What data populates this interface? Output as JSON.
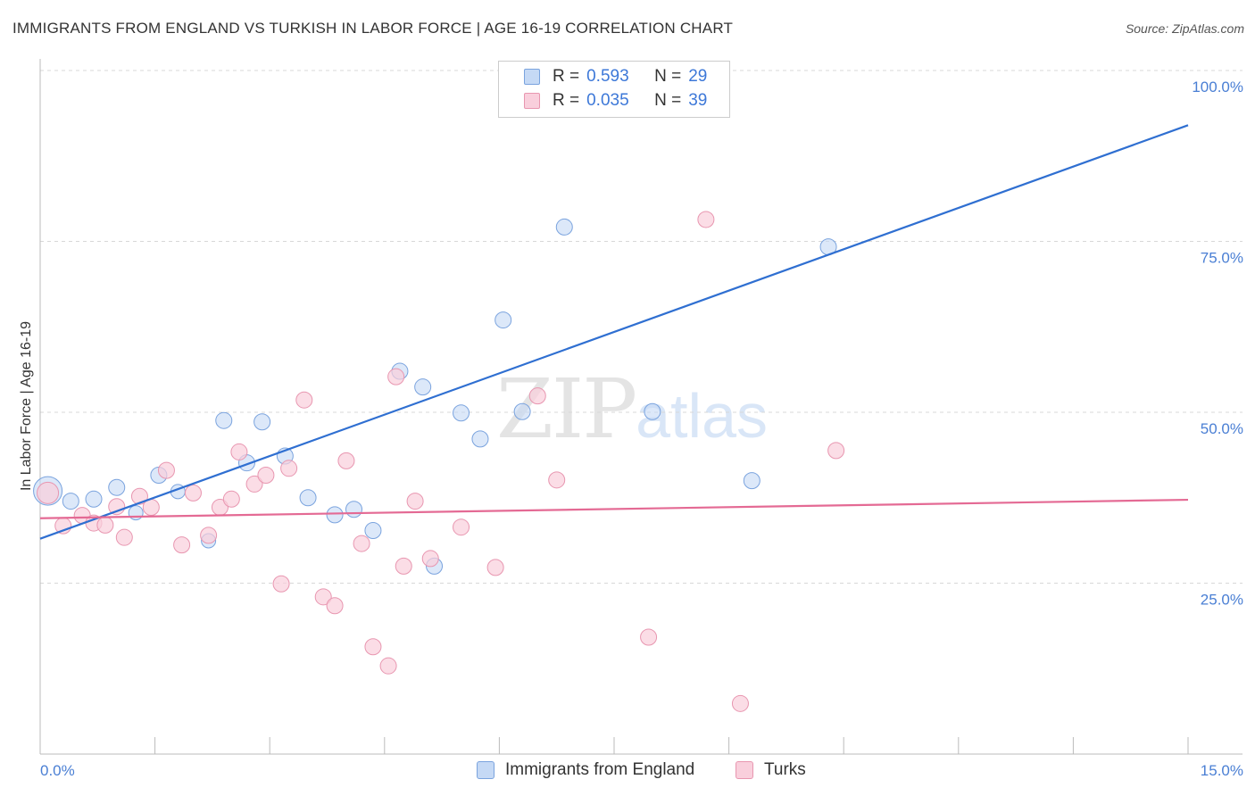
{
  "title": "IMMIGRANTS FROM ENGLAND VS TURKISH IN LABOR FORCE | AGE 16-19 CORRELATION CHART",
  "source": "Source: ZipAtlas.com",
  "watermark": {
    "zip": "ZIP",
    "atlas": "atlas"
  },
  "legend": {
    "rows": [
      {
        "r_label": "R =",
        "r_value": "0.593",
        "n_label": "N =",
        "n_value": "29"
      },
      {
        "r_label": "R =",
        "r_value": "0.035",
        "n_label": "N =",
        "n_value": "39"
      }
    ]
  },
  "bottom_legend": {
    "series1": "Immigrants from England",
    "series2": "Turks"
  },
  "colors": {
    "england_fill": "#c5d9f5",
    "england_stroke": "#7aa3de",
    "england_line": "#2f6fd1",
    "turks_fill": "#f9cfdc",
    "turks_stroke": "#e896b0",
    "turks_line": "#e46a94",
    "tick": "#4a7fd4",
    "grid": "#d8d8d8"
  },
  "chart_data": {
    "type": "scatter",
    "title": "IMMIGRANTS FROM ENGLAND VS TURKISH IN LABOR FORCE | AGE 16-19 CORRELATION CHART",
    "xlabel": "",
    "ylabel": "In Labor Force | Age 16-19",
    "xlim": [
      0,
      15
    ],
    "ylim": [
      0,
      100
    ],
    "x_ticks": [
      "0.0%",
      "15.0%"
    ],
    "y_ticks": [
      "100.0%",
      "75.0%",
      "50.0%",
      "25.0%"
    ],
    "y_tick_values": [
      100,
      75,
      50,
      25
    ],
    "grid": true,
    "legend_position": "top-center",
    "series": [
      {
        "name": "Immigrants from England",
        "R": 0.593,
        "N": 29,
        "trend": [
          [
            0,
            31.5
          ],
          [
            15,
            92
          ]
        ],
        "points": [
          [
            0.1,
            38.5,
            16
          ],
          [
            0.4,
            37,
            9
          ],
          [
            0.7,
            37.3,
            9
          ],
          [
            1.0,
            39,
            9
          ],
          [
            1.25,
            35.3,
            8
          ],
          [
            1.55,
            40.8,
            9
          ],
          [
            1.8,
            38.4,
            8
          ],
          [
            2.2,
            31.2,
            8
          ],
          [
            2.4,
            48.8,
            9
          ],
          [
            2.7,
            42.6,
            9
          ],
          [
            2.9,
            48.6,
            9
          ],
          [
            3.2,
            43.6,
            9
          ],
          [
            3.5,
            37.5,
            9
          ],
          [
            3.85,
            35,
            9
          ],
          [
            4.1,
            35.8,
            9
          ],
          [
            4.35,
            32.7,
            9
          ],
          [
            4.7,
            56,
            9
          ],
          [
            5.0,
            53.7,
            9
          ],
          [
            5.15,
            27.5,
            9
          ],
          [
            5.5,
            49.9,
            9
          ],
          [
            5.75,
            46.1,
            9
          ],
          [
            6.05,
            63.5,
            9
          ],
          [
            6.3,
            50.1,
            9
          ],
          [
            6.85,
            77.1,
            9
          ],
          [
            7.0,
            100,
            9
          ],
          [
            7.7,
            100,
            9
          ],
          [
            8.0,
            50.1,
            9
          ],
          [
            9.3,
            40,
            9
          ],
          [
            10.3,
            74.2,
            9
          ]
        ]
      },
      {
        "name": "Turks",
        "R": 0.035,
        "N": 39,
        "trend": [
          [
            0,
            34.5
          ],
          [
            15,
            37.2
          ]
        ],
        "points": [
          [
            0.1,
            38.2,
            12
          ],
          [
            0.3,
            33.4,
            9
          ],
          [
            0.55,
            34.9,
            9
          ],
          [
            0.7,
            33.8,
            9
          ],
          [
            0.85,
            33.5,
            9
          ],
          [
            1.0,
            36.2,
            9
          ],
          [
            1.1,
            31.7,
            9
          ],
          [
            1.3,
            37.7,
            9
          ],
          [
            1.45,
            36.1,
            9
          ],
          [
            1.65,
            41.5,
            9
          ],
          [
            1.85,
            30.6,
            9
          ],
          [
            2.0,
            38.2,
            9
          ],
          [
            2.2,
            32,
            9
          ],
          [
            2.35,
            36.1,
            9
          ],
          [
            2.5,
            37.3,
            9
          ],
          [
            2.6,
            44.2,
            9
          ],
          [
            2.8,
            39.5,
            9
          ],
          [
            2.95,
            40.8,
            9
          ],
          [
            3.15,
            24.9,
            9
          ],
          [
            3.25,
            41.8,
            9
          ],
          [
            3.45,
            51.8,
            9
          ],
          [
            3.7,
            23,
            9
          ],
          [
            3.85,
            21.7,
            9
          ],
          [
            4.0,
            42.9,
            9
          ],
          [
            4.2,
            30.8,
            9
          ],
          [
            4.35,
            15.7,
            9
          ],
          [
            4.55,
            12.9,
            9
          ],
          [
            4.65,
            55.2,
            9
          ],
          [
            4.75,
            27.5,
            9
          ],
          [
            4.9,
            37,
            9
          ],
          [
            5.1,
            28.6,
            9
          ],
          [
            5.5,
            33.2,
            9
          ],
          [
            5.95,
            27.3,
            9
          ],
          [
            6.5,
            52.4,
            9
          ],
          [
            6.75,
            40.1,
            9
          ],
          [
            7.95,
            17.1,
            9
          ],
          [
            8.7,
            78.2,
            9
          ],
          [
            9.15,
            7.4,
            9
          ],
          [
            10.4,
            44.4,
            9
          ]
        ]
      }
    ]
  }
}
